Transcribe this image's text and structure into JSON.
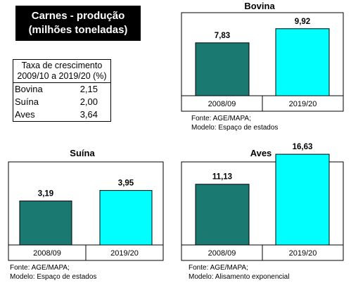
{
  "title": {
    "line1": "Carnes - produção",
    "line2": "(milhões toneladas)"
  },
  "table": {
    "header_line1": "Taxa de crescimento",
    "header_line2": "2009/10 a 2019/20 (%)",
    "rows": [
      {
        "label": "Bovina",
        "value": "2,15"
      },
      {
        "label": "Suína",
        "value": "2,00"
      },
      {
        "label": "Aves",
        "value": "3,64"
      }
    ]
  },
  "colors": {
    "bar_2008": "#1a7a72",
    "bar_2019": "#00ffff",
    "border": "#000000"
  },
  "chart_data": [
    {
      "type": "bar",
      "title": "Bovina",
      "categories": [
        "2008/09",
        "2019/20"
      ],
      "values": [
        7.83,
        9.92
      ],
      "value_labels": [
        "7,83",
        "9,92"
      ],
      "source_line1": "Fonte: AGE/MAPA;",
      "source_line2": "Modelo: Espaço de estados"
    },
    {
      "type": "bar",
      "title": "Suína",
      "categories": [
        "2008/09",
        "2019/20"
      ],
      "values": [
        3.19,
        3.95
      ],
      "value_labels": [
        "3,19",
        "3,95"
      ],
      "source_line1": "Fonte: AGE/MAPA;",
      "source_line2": "Modelo: Espaço de estados"
    },
    {
      "type": "bar",
      "title": "Aves",
      "categories": [
        "2008/09",
        "2019/20"
      ],
      "values": [
        11.13,
        16.63
      ],
      "value_labels": [
        "11,13",
        "16,63"
      ],
      "source_line1": "Fonte: AGE/MAPA;",
      "source_line2": "Modelo: Alisamento exponencial"
    }
  ]
}
